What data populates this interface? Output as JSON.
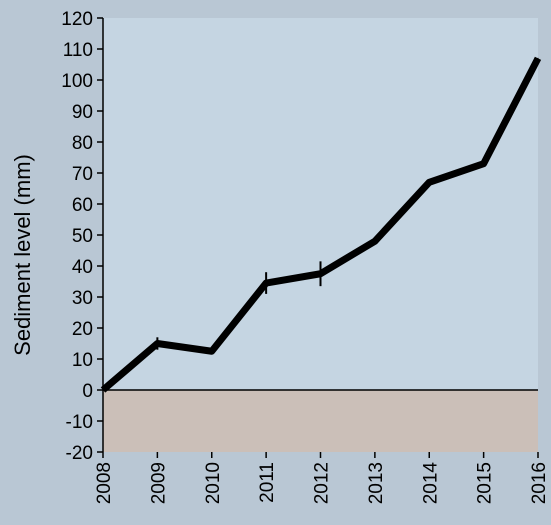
{
  "chart_data": {
    "type": "line",
    "title": "",
    "xlabel": "",
    "ylabel": "Sediment level (mm)",
    "x": [
      2008,
      2009,
      2010,
      2011,
      2012,
      2013,
      2014,
      2015,
      2016
    ],
    "x_tick_labels": [
      "2008",
      "2009",
      "2010",
      "2011",
      "2012",
      "2013",
      "2014",
      "2015",
      "2016"
    ],
    "y_ticks": [
      -20,
      -10,
      0,
      10,
      20,
      30,
      40,
      50,
      60,
      70,
      80,
      90,
      100,
      110,
      120
    ],
    "y_tick_labels": [
      "-20",
      "-10",
      "0",
      "10",
      "20",
      "30",
      "40",
      "50",
      "60",
      "70",
      "80",
      "90",
      "100",
      "110",
      "120"
    ],
    "ylim": [
      -20,
      120
    ],
    "xlim": [
      2008,
      2016
    ],
    "series": [
      {
        "values": [
          0,
          15,
          12.5,
          34.5,
          37.5,
          48,
          67,
          73,
          107
        ],
        "error": [
          0,
          2,
          0,
          3.5,
          4,
          0,
          0,
          0,
          0
        ],
        "color": "#000000"
      }
    ],
    "grid": false,
    "legend": "none",
    "colors": {
      "page_background": "#b9c7d4",
      "plot_background_positive": "#c5d5e2",
      "plot_background_negative": "#cbbfb8",
      "line": "#000000"
    }
  }
}
